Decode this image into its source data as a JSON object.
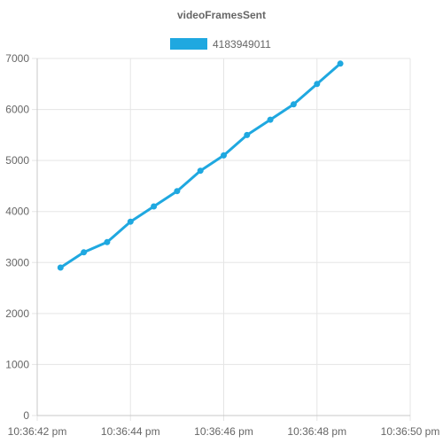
{
  "chart_data": {
    "type": "line",
    "title": "videoFramesSent",
    "xlabel": "",
    "ylabel": "",
    "grid": true,
    "legend_position": "top",
    "x_ticks": [
      "10:36:42 pm",
      "10:36:44 pm",
      "10:36:46 pm",
      "10:36:48 pm",
      "10:36:50 pm"
    ],
    "xlim": [
      "10:36:42 pm",
      "10:36:50 pm"
    ],
    "ylim": [
      0,
      7000
    ],
    "y_ticks": [
      "0",
      "1000",
      "2000",
      "3000",
      "4000",
      "5000",
      "6000",
      "7000"
    ],
    "series": [
      {
        "name": "4183949011",
        "color": "#1fa8e0",
        "x": [
          "10:36:42.5 pm",
          "10:36:43.0 pm",
          "10:36:43.5 pm",
          "10:36:44.0 pm",
          "10:36:44.5 pm",
          "10:36:45.0 pm",
          "10:36:45.5 pm",
          "10:36:46.0 pm",
          "10:36:46.5 pm",
          "10:36:47.0 pm",
          "10:36:47.5 pm",
          "10:36:48.0 pm",
          "10:36:48.5 pm"
        ],
        "values": [
          2900,
          3200,
          3400,
          3800,
          4100,
          4400,
          4800,
          5100,
          5500,
          5800,
          6100,
          6500,
          6900
        ]
      }
    ]
  }
}
